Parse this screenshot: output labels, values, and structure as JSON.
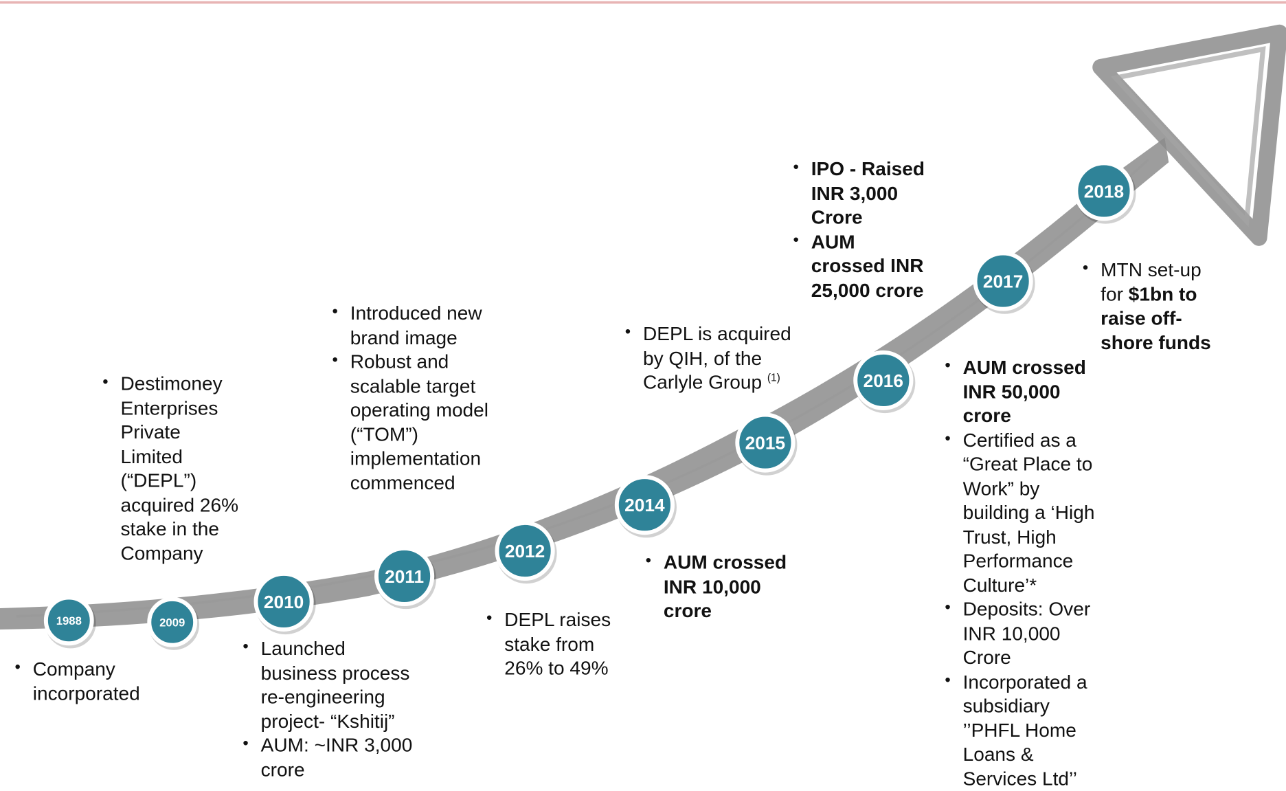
{
  "milestones": [
    {
      "year": "1988",
      "bullets": [
        [
          {
            "text": "Company incorporated"
          }
        ]
      ]
    },
    {
      "year": "2009",
      "bullets": [
        [
          {
            "text": "Destimoney Enterprises Private Limited (“DEPL”) acquired 26% stake in the Company"
          }
        ]
      ]
    },
    {
      "year": "2010",
      "bullets": [
        [
          {
            "text": "Launched business process re-engineering project- “Kshitij”"
          }
        ],
        [
          {
            "text": "AUM: ~INR 3,000 crore"
          }
        ]
      ]
    },
    {
      "year": "2011",
      "bullets": [
        [
          {
            "text": "Introduced new brand image"
          }
        ],
        [
          {
            "text": "Robust and scalable target operating model (“TOM”) implementation commenced"
          }
        ]
      ]
    },
    {
      "year": "2012",
      "bullets": [
        [
          {
            "text": "DEPL raises stake from 26% to 49%"
          }
        ]
      ]
    },
    {
      "year": "2014",
      "bullets": [
        [
          {
            "text": "AUM crossed INR 10,000 crore",
            "bold": true
          }
        ]
      ]
    },
    {
      "year": "2015",
      "bullets": [
        [
          {
            "text": "DEPL is acquired by QIH, of the Carlyle Group "
          },
          {
            "text": "(1)",
            "sup": true
          }
        ]
      ]
    },
    {
      "year": "2016",
      "bullets": [
        [
          {
            "text": "IPO - Raised INR 3,000 Crore",
            "bold": true
          }
        ],
        [
          {
            "text": "AUM crossed INR 25,000 crore",
            "bold": true
          }
        ]
      ]
    },
    {
      "year": "2017",
      "bullets": [
        [
          {
            "text": "AUM crossed INR 50,000 crore",
            "bold": true
          }
        ],
        [
          {
            "text": "Certified as a “Great Place to Work” by building a  ‘High Trust, High Performance Culture’*"
          }
        ],
        [
          {
            "text": "Deposits: Over INR 10,000 Crore"
          }
        ],
        [
          {
            "text": "Incorporated a subsidiary ’’PHFL Home Loans & Services Ltd’’"
          }
        ]
      ]
    },
    {
      "year": "2018",
      "bullets": [
        [
          {
            "text": "MTN set-up for "
          },
          {
            "text": "$1bn to raise off-shore funds",
            "bold": true
          }
        ]
      ]
    }
  ]
}
